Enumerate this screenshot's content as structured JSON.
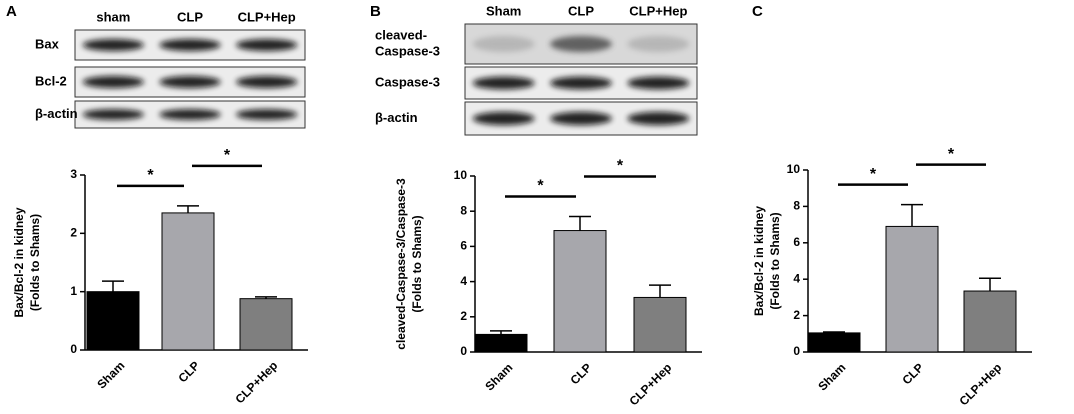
{
  "chart_data": [
    {
      "type": "bar",
      "panel_label": "A",
      "blot": {
        "lanes": [
          "sham",
          "CLP",
          "CLP+Hep"
        ],
        "rows": [
          [
            "Bax"
          ],
          [
            "Bcl-2"
          ],
          [
            "β-actin"
          ]
        ]
      },
      "y_label": [
        "Bax/Bcl-2 in kidney",
        "(Folds to Shams)"
      ],
      "categories": [
        "Sham",
        "CLP",
        "CLP+Hep"
      ],
      "values": [
        1.0,
        2.35,
        0.88
      ],
      "errors": [
        0.18,
        0.12,
        0.03
      ],
      "colors": [
        "#000000",
        "#a7a7ac",
        "#7f7f7f"
      ],
      "ylim": [
        0,
        3
      ],
      "yticks": [
        0,
        1,
        2,
        3
      ],
      "annotations": [
        "*",
        "*"
      ]
    },
    {
      "type": "bar",
      "panel_label": "B",
      "blot": {
        "lanes": [
          "Sham",
          "CLP",
          "CLP+Hep"
        ],
        "rows": [
          [
            "cleaved-",
            "Caspase-3"
          ],
          [
            "Caspase-3"
          ],
          [
            "β-actin"
          ]
        ]
      },
      "y_label": [
        "cleaved-Caspase-3/Caspase-3",
        "(Folds to Shams)"
      ],
      "categories": [
        "Sham",
        "CLP",
        "CLP+Hep"
      ],
      "values": [
        1.0,
        6.9,
        3.1
      ],
      "errors": [
        0.2,
        0.8,
        0.7
      ],
      "colors": [
        "#000000",
        "#a7a7ac",
        "#7f7f7f"
      ],
      "ylim": [
        0,
        10
      ],
      "yticks": [
        0,
        2,
        4,
        6,
        8,
        10
      ],
      "annotations": [
        "*",
        "*"
      ]
    },
    {
      "type": "bar",
      "panel_label": "C",
      "y_label": [
        "Bax/Bcl-2 in kidney",
        "(Folds to Shams)"
      ],
      "categories": [
        "Sham",
        "CLP",
        "CLP+Hep"
      ],
      "values": [
        1.05,
        6.9,
        3.35
      ],
      "errors": [
        0.05,
        1.2,
        0.7
      ],
      "colors": [
        "#000000",
        "#a7a7ac",
        "#7f7f7f"
      ],
      "ylim": [
        0,
        10
      ],
      "yticks": [
        0,
        2,
        4,
        6,
        8,
        10
      ],
      "annotations": [
        "*",
        "*"
      ]
    }
  ]
}
